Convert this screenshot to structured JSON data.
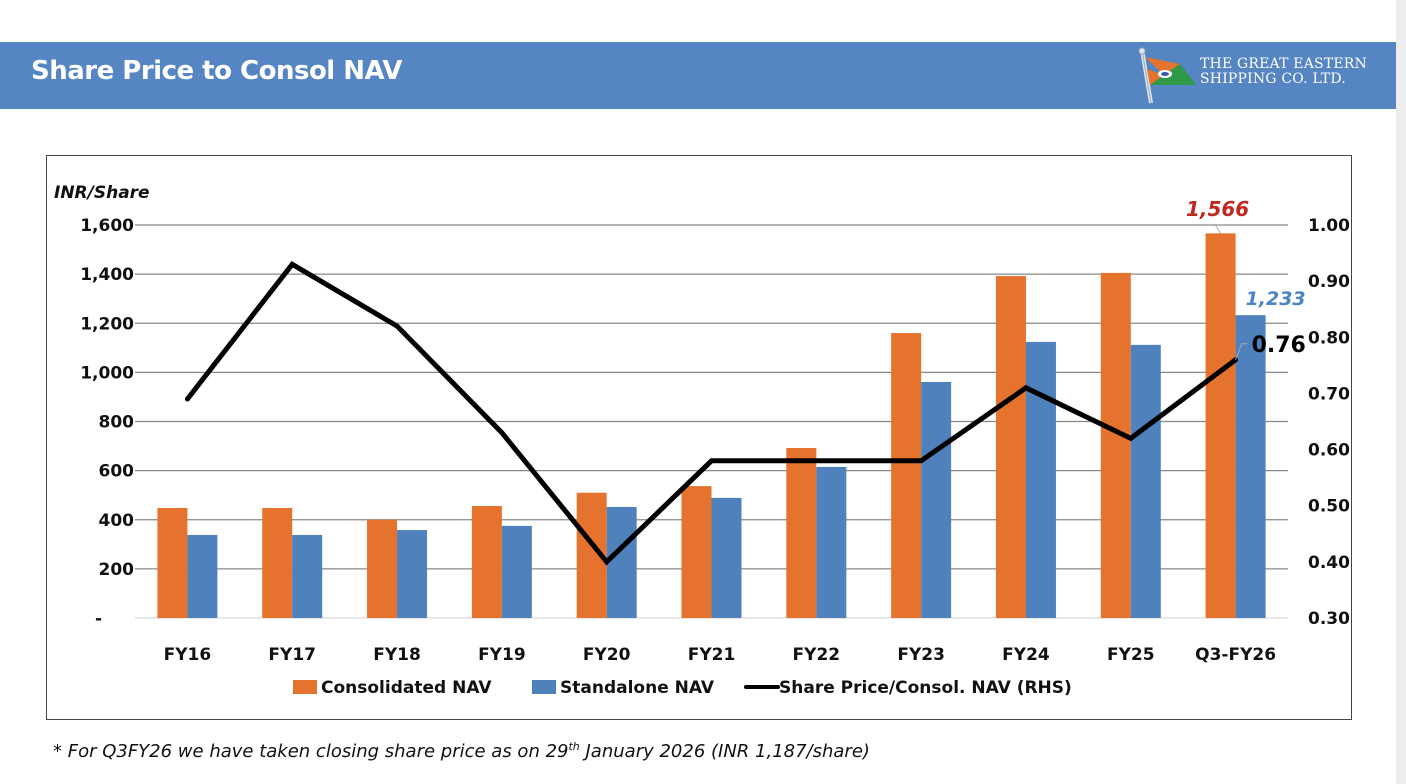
{
  "header": {
    "title": "Share Price to Consol NAV",
    "logo_line1": "THE GREAT EASTERN",
    "logo_line2": "SHIPPING CO. LTD.",
    "logo_icon": "flag-icon"
  },
  "colors": {
    "header_bg": "#5585c2",
    "consolidated": "#e5722d",
    "standalone": "#4f81bd",
    "line": "#000000",
    "consolidated_label": "#c0271e",
    "standalone_label": "#4a86c5"
  },
  "chart_data": {
    "type": "bar",
    "title": "Share Price to Consol NAV",
    "ylabel": "INR/Share",
    "y2label": "",
    "xlabel": "",
    "categories": [
      "FY16",
      "FY17",
      "FY18",
      "FY19",
      "FY20",
      "FY21",
      "FY22",
      "FY23",
      "FY24",
      "FY25",
      "Q3-FY26"
    ],
    "series": [
      {
        "name": "Consolidated NAV",
        "type": "bar",
        "axis": "left",
        "values": [
          448,
          448,
          400,
          456,
          510,
          537,
          692,
          1160,
          1392,
          1405,
          1566
        ]
      },
      {
        "name": "Standalone NAV",
        "type": "bar",
        "axis": "left",
        "values": [
          338,
          338,
          358,
          375,
          452,
          489,
          615,
          961,
          1124,
          1112,
          1233
        ]
      },
      {
        "name": "Share Price/Consol. NAV (RHS)",
        "type": "line",
        "axis": "right",
        "values": [
          0.69,
          0.93,
          0.82,
          0.63,
          0.4,
          0.58,
          0.58,
          0.58,
          0.71,
          0.62,
          0.76
        ]
      }
    ],
    "ylim": [
      0,
      1600
    ],
    "y2lim": [
      0.3,
      1.0
    ],
    "yticks": [
      0,
      200,
      400,
      600,
      800,
      1000,
      1200,
      1400,
      1600
    ],
    "ytick_labels": [
      "-",
      "200",
      "400",
      "600",
      "800",
      "1,000",
      "1,200",
      "1,400",
      "1,600"
    ],
    "y2ticks": [
      0.3,
      0.4,
      0.5,
      0.6,
      0.7,
      0.8,
      0.9,
      1.0
    ],
    "y2tick_labels": [
      "0.30",
      "0.40",
      "0.50",
      "0.60",
      "0.70",
      "0.80",
      "0.90",
      "1.00"
    ],
    "annotations": [
      {
        "text": "1,566",
        "series": "Consolidated NAV",
        "category": "Q3-FY26"
      },
      {
        "text": "1,233",
        "series": "Standalone NAV",
        "category": "Q3-FY26"
      },
      {
        "text": "0.76",
        "series": "Share Price/Consol. NAV (RHS)",
        "category": "Q3-FY26"
      }
    ],
    "grid": true,
    "legend": "bottom",
    "legend_labels": [
      "Consolidated NAV",
      "Standalone NAV",
      "Share Price/Consol. NAV (RHS)"
    ]
  },
  "footnote": {
    "prefix": "* For Q3FY26 we have taken closing share price as on 29",
    "sup": "th",
    "suffix": " January 2026 (INR 1,187/share)"
  }
}
